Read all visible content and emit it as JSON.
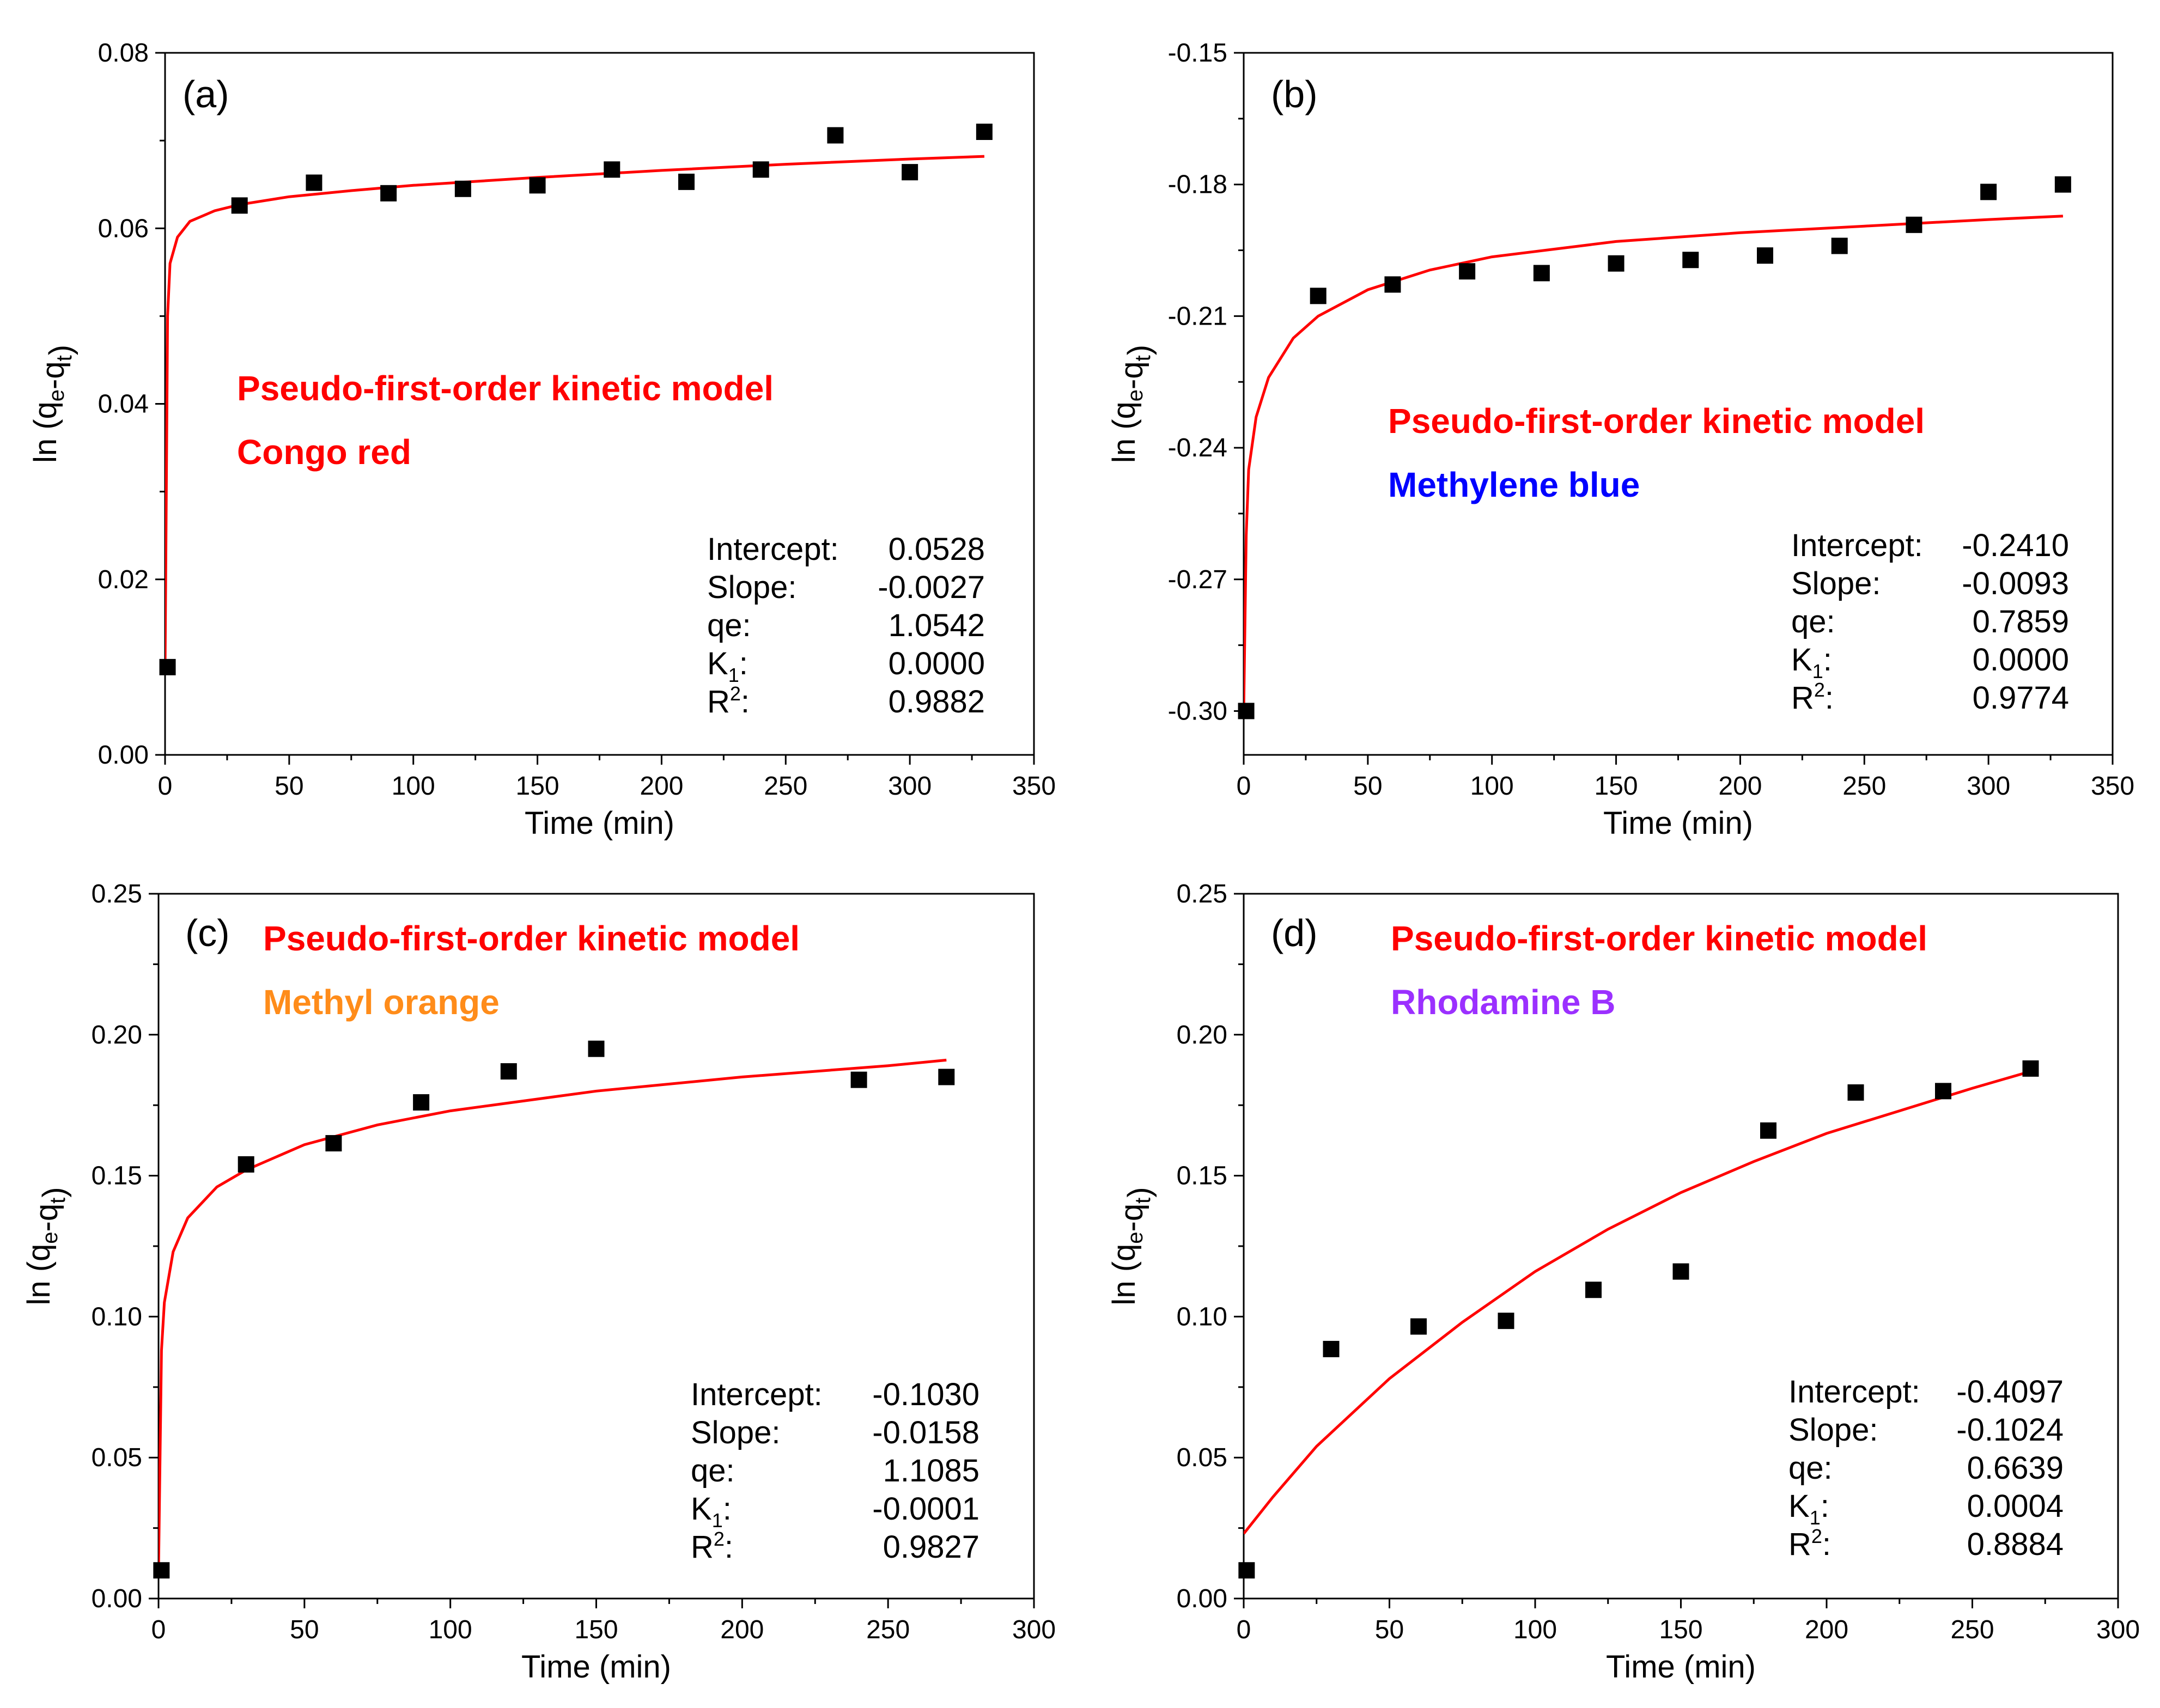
{
  "chart_data": [
    {
      "type": "scatter",
      "panel_label": "(a)",
      "model_label": "Pseudo-first-order kinetic model",
      "dye_label": "Congo red",
      "dye_color": "#ff0000",
      "xlabel": "Time (min)",
      "ylabel": "ln (qe-qt)",
      "xlim": [
        0,
        350
      ],
      "ylim": [
        0.0,
        0.08
      ],
      "xticks": [
        "0",
        "50",
        "100",
        "150",
        "200",
        "250",
        "300",
        "350"
      ],
      "yticks": [
        "0.00",
        "0.02",
        "0.04",
        "0.06",
        "0.08"
      ],
      "points": {
        "x": [
          1,
          30,
          60,
          90,
          120,
          150,
          180,
          210,
          240,
          270,
          300,
          330
        ],
        "y": [
          0.01,
          0.0626,
          0.0652,
          0.064,
          0.0645,
          0.0649,
          0.0667,
          0.0653,
          0.0667,
          0.0706,
          0.0664,
          0.071
        ]
      },
      "fit": {
        "x": [
          0,
          1,
          2,
          5,
          10,
          20,
          30,
          50,
          75,
          100,
          150,
          200,
          250,
          300,
          330
        ],
        "y": [
          0.01,
          0.05,
          0.056,
          0.059,
          0.0608,
          0.062,
          0.0627,
          0.0636,
          0.0643,
          0.0649,
          0.0658,
          0.0666,
          0.0673,
          0.0679,
          0.0682
        ]
      },
      "stats": [
        {
          "label": "Intercept:",
          "value": "0.0528"
        },
        {
          "label": "Slope:",
          "value": "-0.0027"
        },
        {
          "label": "qe:",
          "value": "1.0542"
        },
        {
          "label": "K1:",
          "value": "0.0000"
        },
        {
          "label": "R2:",
          "value": "0.9882"
        }
      ]
    },
    {
      "type": "scatter",
      "panel_label": "(b)",
      "model_label": "Pseudo-first-order kinetic model",
      "dye_label": "Methylene blue",
      "dye_color": "#0000ff",
      "xlabel": "Time (min)",
      "ylabel": "ln (qe-qt)",
      "xlim": [
        0,
        350
      ],
      "ylim": [
        -0.31,
        -0.15
      ],
      "xticks": [
        "0",
        "50",
        "100",
        "150",
        "200",
        "250",
        "300",
        "350"
      ],
      "yticks": [
        "-0.30",
        "-0.27",
        "-0.24",
        "-0.21",
        "-0.18",
        "-0.15"
      ],
      "points": {
        "x": [
          1,
          30,
          60,
          90,
          120,
          150,
          180,
          210,
          240,
          270,
          300,
          330
        ],
        "y": [
          -0.3,
          -0.2054,
          -0.2028,
          -0.1998,
          -0.2002,
          -0.198,
          -0.1972,
          -0.1962,
          -0.194,
          -0.1892,
          -0.1817,
          -0.18
        ]
      },
      "fit": {
        "x": [
          0,
          1,
          2,
          5,
          10,
          20,
          30,
          50,
          75,
          100,
          150,
          200,
          250,
          300,
          330
        ],
        "y": [
          -0.3,
          -0.26,
          -0.245,
          -0.233,
          -0.224,
          -0.215,
          -0.21,
          -0.204,
          -0.1995,
          -0.1965,
          -0.193,
          -0.191,
          -0.1895,
          -0.188,
          -0.1872
        ]
      },
      "stats": [
        {
          "label": "Intercept:",
          "value": "-0.2410"
        },
        {
          "label": "Slope:",
          "value": "-0.0093"
        },
        {
          "label": "qe:",
          "value": "0.7859"
        },
        {
          "label": "K1:",
          "value": "0.0000"
        },
        {
          "label": "R2:",
          "value": "0.9774"
        }
      ]
    },
    {
      "type": "scatter",
      "panel_label": "(c)",
      "model_label": "Pseudo-first-order kinetic model",
      "dye_label": "Methyl orange",
      "dye_color": "#ff8c1a",
      "xlabel": "Time (min)",
      "ylabel": "ln (qe-qt)",
      "xlim": [
        0,
        300
      ],
      "ylim": [
        0.0,
        0.25
      ],
      "xticks": [
        "0",
        "50",
        "100",
        "150",
        "200",
        "250",
        "300"
      ],
      "yticks": [
        "0.00",
        "0.05",
        "0.10",
        "0.15",
        "0.20",
        "0.25"
      ],
      "points": {
        "x": [
          1,
          30,
          60,
          90,
          120,
          150,
          240,
          270
        ],
        "y": [
          0.01,
          0.154,
          0.1615,
          0.176,
          0.187,
          0.195,
          0.184,
          0.185
        ]
      },
      "fit": {
        "x": [
          0,
          1,
          2,
          5,
          10,
          20,
          30,
          50,
          75,
          100,
          150,
          200,
          250,
          270
        ],
        "y": [
          0.01,
          0.088,
          0.105,
          0.123,
          0.135,
          0.146,
          0.152,
          0.161,
          0.168,
          0.173,
          0.18,
          0.185,
          0.189,
          0.191
        ]
      },
      "stats": [
        {
          "label": "Intercept:",
          "value": "-0.1030"
        },
        {
          "label": "Slope:",
          "value": "-0.0158"
        },
        {
          "label": "qe:",
          "value": "1.1085"
        },
        {
          "label": "K1:",
          "value": "-0.0001"
        },
        {
          "label": "R2:",
          "value": "0.9827"
        }
      ]
    },
    {
      "type": "scatter",
      "panel_label": "(d)",
      "model_label": "Pseudo-first-order kinetic model",
      "dye_label": "Rhodamine B",
      "dye_color": "#9b30ff",
      "xlabel": "Time (min)",
      "ylabel": "ln (qe-qt)",
      "xlim": [
        0,
        300
      ],
      "ylim": [
        0.0,
        0.25
      ],
      "xticks": [
        "0",
        "50",
        "100",
        "150",
        "200",
        "250",
        "300"
      ],
      "yticks": [
        "0.00",
        "0.05",
        "0.10",
        "0.15",
        "0.20",
        "0.25"
      ],
      "points": {
        "x": [
          1,
          30,
          60,
          90,
          120,
          150,
          180,
          210,
          240,
          270
        ],
        "y": [
          0.01,
          0.0885,
          0.0965,
          0.0985,
          0.1095,
          0.116,
          0.166,
          0.1795,
          0.18,
          0.188
        ]
      },
      "fit": {
        "x": [
          0,
          10,
          25,
          50,
          75,
          100,
          125,
          150,
          175,
          200,
          225,
          250,
          270
        ],
        "y": [
          0.023,
          0.036,
          0.054,
          0.078,
          0.098,
          0.116,
          0.131,
          0.144,
          0.155,
          0.165,
          0.173,
          0.181,
          0.187
        ]
      },
      "stats": [
        {
          "label": "Intercept:",
          "value": "-0.4097"
        },
        {
          "label": "Slope:",
          "value": "-0.1024"
        },
        {
          "label": "qe:",
          "value": "0.6639"
        },
        {
          "label": "K1:",
          "value": "0.0004"
        },
        {
          "label": "R2:",
          "value": "0.8884"
        }
      ]
    }
  ],
  "colors": {
    "fit_line": "#ff0000",
    "points": "#000000",
    "model_label": "#ff0000"
  }
}
